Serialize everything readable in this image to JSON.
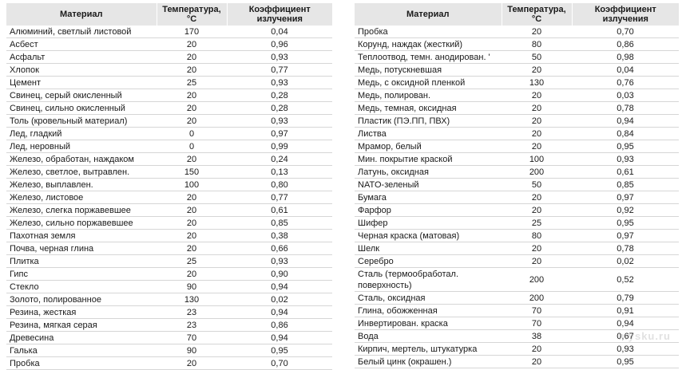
{
  "headers": {
    "material": "Материал",
    "temperature_line1": "Температура,",
    "temperature_line2": "°C",
    "coefficient_line1": "Коэффициент",
    "coefficient_line2": "излучения"
  },
  "left_table": [
    {
      "material": "Алюминий, светлый листовой",
      "temperature": "170",
      "coefficient": "0,04"
    },
    {
      "material": "Асбест",
      "temperature": "20",
      "coefficient": "0,96"
    },
    {
      "material": "Асфальт",
      "temperature": "20",
      "coefficient": "0,93"
    },
    {
      "material": "Хлопок",
      "temperature": "20",
      "coefficient": "0,77"
    },
    {
      "material": "Цемент",
      "temperature": "25",
      "coefficient": "0,93"
    },
    {
      "material": "Свинец, серый окисленный",
      "temperature": "20",
      "coefficient": "0,28"
    },
    {
      "material": "Свинец, сильно окисленный",
      "temperature": "20",
      "coefficient": "0,28"
    },
    {
      "material": "Толь (кровельный материал)",
      "temperature": "20",
      "coefficient": "0,93"
    },
    {
      "material": "Лед, гладкий",
      "temperature": "0",
      "coefficient": "0,97"
    },
    {
      "material": "Лед, неровный",
      "temperature": "0",
      "coefficient": "0,99"
    },
    {
      "material": "Железо, обработан, наждаком",
      "temperature": "20",
      "coefficient": "0,24"
    },
    {
      "material": "Железо, светлое, вытравлен.",
      "temperature": "150",
      "coefficient": "0,13"
    },
    {
      "material": "Железо, выплавлен.",
      "temperature": "100",
      "coefficient": "0,80"
    },
    {
      "material": "Железо, листовое",
      "temperature": "20",
      "coefficient": "0,77"
    },
    {
      "material": "Железо, слегка поржавевшее",
      "temperature": "20",
      "coefficient": "0,61"
    },
    {
      "material": "Железо, сильно поржавевшее",
      "temperature": "20",
      "coefficient": "0,85"
    },
    {
      "material": "Пахотная земля",
      "temperature": "20",
      "coefficient": "0,38"
    },
    {
      "material": "Почва, черная глина",
      "temperature": "20",
      "coefficient": "0,66"
    },
    {
      "material": "Плитка",
      "temperature": "25",
      "coefficient": "0,93"
    },
    {
      "material": "Гипс",
      "temperature": "20",
      "coefficient": "0,90"
    },
    {
      "material": "Стекло",
      "temperature": "90",
      "coefficient": "0,94"
    },
    {
      "material": "Золото, полированное",
      "temperature": "130",
      "coefficient": "0,02"
    },
    {
      "material": "Резина, жесткая",
      "temperature": "23",
      "coefficient": "0,94"
    },
    {
      "material": "Резина, мягкая серая",
      "temperature": "23",
      "coefficient": "0,86"
    },
    {
      "material": "Древесина",
      "temperature": "70",
      "coefficient": "0,94"
    },
    {
      "material": "Галька",
      "temperature": "90",
      "coefficient": "0,95"
    },
    {
      "material": "Пробка",
      "temperature": "20",
      "coefficient": "0,70"
    }
  ],
  "right_table": [
    {
      "material": "Пробка",
      "temperature": "20",
      "coefficient": "0,70"
    },
    {
      "material": "Корунд, наждак (жесткий)",
      "temperature": "80",
      "coefficient": "0,86"
    },
    {
      "material": "Теплоотвод, темн. анодирован. '",
      "temperature": "50",
      "coefficient": "0,98"
    },
    {
      "material": "Медь, потускневшая",
      "temperature": "20",
      "coefficient": "0,04"
    },
    {
      "material": "Медь, с оксидной пленкой",
      "temperature": "130",
      "coefficient": "0,76"
    },
    {
      "material": "Медь, полирован.",
      "temperature": "20",
      "coefficient": "0,03"
    },
    {
      "material": "Медь, темная, оксидная",
      "temperature": "20",
      "coefficient": "0,78"
    },
    {
      "material": "Пластик (ПЭ.ПП, ПВХ)",
      "temperature": "20",
      "coefficient": "0,94"
    },
    {
      "material": "Листва",
      "temperature": "20",
      "coefficient": "0,84"
    },
    {
      "material": "Мрамор, белый",
      "temperature": "20",
      "coefficient": "0,95"
    },
    {
      "material": "Мин. покрытие краской",
      "temperature": "100",
      "coefficient": "0,93"
    },
    {
      "material": "Латунь, оксидная",
      "temperature": "200",
      "coefficient": "0,61"
    },
    {
      "material": "NATO-зеленый",
      "temperature": "50",
      "coefficient": "0,85"
    },
    {
      "material": "Бумага",
      "temperature": "20",
      "coefficient": "0,97"
    },
    {
      "material": "Фарфор",
      "temperature": "20",
      "coefficient": "0,92"
    },
    {
      "material": "Шифер",
      "temperature": "25",
      "coefficient": "0,95"
    },
    {
      "material": "Черная краска (матовая)",
      "temperature": "80",
      "coefficient": "0,97"
    },
    {
      "material": "Шелк",
      "temperature": "20",
      "coefficient": "0,78"
    },
    {
      "material": "Серебро",
      "temperature": "20",
      "coefficient": "0,02"
    },
    {
      "material": "Сталь (термообработал. поверхность)",
      "temperature": "200",
      "coefficient": "0,52",
      "tall": true
    },
    {
      "material": "Сталь, оксидная",
      "temperature": "200",
      "coefficient": "0,79"
    },
    {
      "material": "Глина, обожженная",
      "temperature": "70",
      "coefficient": "0,91"
    },
    {
      "material": "Инвертирован. краска",
      "temperature": "70",
      "coefficient": "0,94"
    },
    {
      "material": "Вода",
      "temperature": "38",
      "coefficient": "0,67"
    },
    {
      "material": "Кирпич, мертель, штукатурка",
      "temperature": "20",
      "coefficient": "0,93"
    },
    {
      "material": "Белый цинк (окрашен.)",
      "temperature": "20",
      "coefficient": "0,95"
    }
  ],
  "watermark": "mysku.ru"
}
